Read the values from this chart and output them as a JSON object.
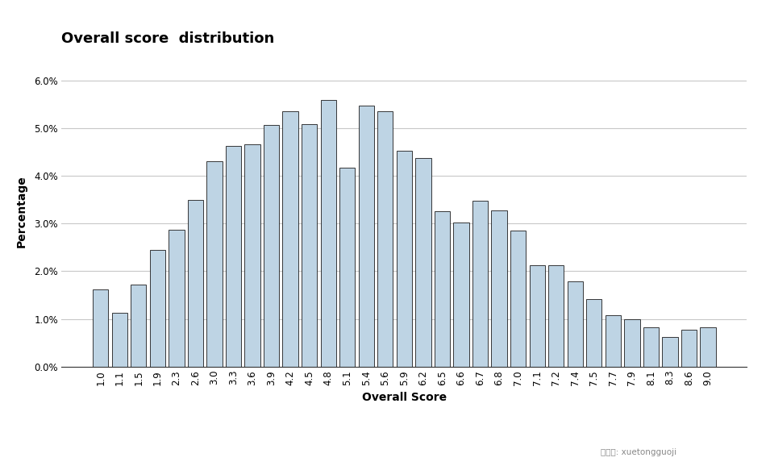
{
  "title": "Overall score  distribution",
  "xlabel": "Overall Score",
  "ylabel": "Percentage",
  "background_color": "#ffffff",
  "bar_color": "#bed4e4",
  "bar_edge_color": "#1a1a1a",
  "categories": [
    "1.0",
    "1.1",
    "1.5",
    "1.9",
    "2.3",
    "2.6",
    "3.0",
    "3.3",
    "3.6",
    "3.9",
    "4.2",
    "4.5",
    "4.8",
    "5.1",
    "5.4",
    "5.6",
    "5.9",
    "6.2",
    "6.5",
    "6.6",
    "6.7",
    "6.8",
    "7.0",
    "7.1",
    "7.2",
    "7.4",
    "7.5",
    "7.7",
    "7.9",
    "8.1",
    "8.3",
    "8.6",
    "9.0"
  ],
  "values": [
    1.62,
    1.12,
    1.72,
    2.45,
    2.87,
    3.5,
    4.3,
    4.62,
    4.65,
    5.07,
    5.35,
    5.08,
    5.58,
    4.17,
    5.47,
    5.35,
    4.52,
    4.37,
    3.25,
    3.02,
    3.48,
    3.28,
    2.85,
    2.12,
    2.12,
    1.78,
    1.42,
    1.08,
    1.0,
    0.82,
    0.62,
    0.78,
    0.82
  ],
  "ylim": [
    0,
    6.5
  ],
  "yticks": [
    0.0,
    1.0,
    2.0,
    3.0,
    4.0,
    5.0,
    6.0
  ],
  "grid_color": "#c8c8c8",
  "title_fontsize": 13,
  "axis_label_fontsize": 10,
  "tick_fontsize": 8.5,
  "bar_linewidth": 0.6
}
